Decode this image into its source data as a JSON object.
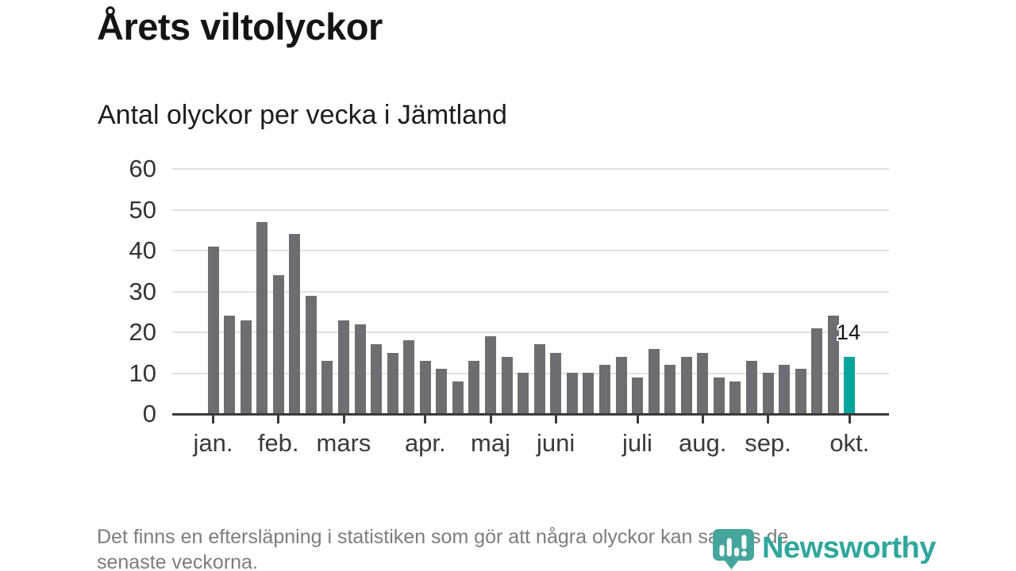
{
  "header": {
    "title": "Årets viltolyckor",
    "subtitle": "Antal olyckor per vecka i Jämtland"
  },
  "chart_data": {
    "type": "bar",
    "title": "Årets viltolyckor",
    "subtitle": "Antal olyckor per vecka i Jämtland",
    "values": [
      41,
      24,
      23,
      47,
      34,
      44,
      29,
      13,
      23,
      22,
      17,
      15,
      18,
      13,
      11,
      8,
      13,
      19,
      14,
      10,
      17,
      15,
      10,
      10,
      12,
      14,
      9,
      16,
      12,
      14,
      15,
      9,
      8,
      13,
      10,
      12,
      11,
      21,
      24,
      14
    ],
    "highlight_index": 39,
    "highlight_value_label": "14",
    "yticks": [
      0,
      10,
      20,
      30,
      40,
      50,
      60
    ],
    "ylim": [
      0,
      60
    ],
    "grid": true,
    "month_ticks": [
      {
        "index": 0,
        "label": "jan."
      },
      {
        "index": 4,
        "label": "feb."
      },
      {
        "index": 8,
        "label": "mars"
      },
      {
        "index": 13,
        "label": "apr."
      },
      {
        "index": 17,
        "label": "maj"
      },
      {
        "index": 21,
        "label": "juni"
      },
      {
        "index": 26,
        "label": "juli"
      },
      {
        "index": 30,
        "label": "aug."
      },
      {
        "index": 34,
        "label": "sep."
      },
      {
        "index": 39,
        "label": "okt."
      }
    ],
    "colors": {
      "bar": "#6e6e72",
      "highlight": "#00a49d",
      "gridline": "#e2e2e2",
      "axis": "#3a3a3a",
      "brand": "#2fa79d"
    }
  },
  "footer": {
    "note_line1": "Det finns en eftersläpning i statistiken som gör att några olyckor kan saknas de",
    "note_line2": "senaste veckorna.",
    "brand": "Newsworthy",
    "logo_icon": "newsworthy-pin-barchart-icon"
  }
}
